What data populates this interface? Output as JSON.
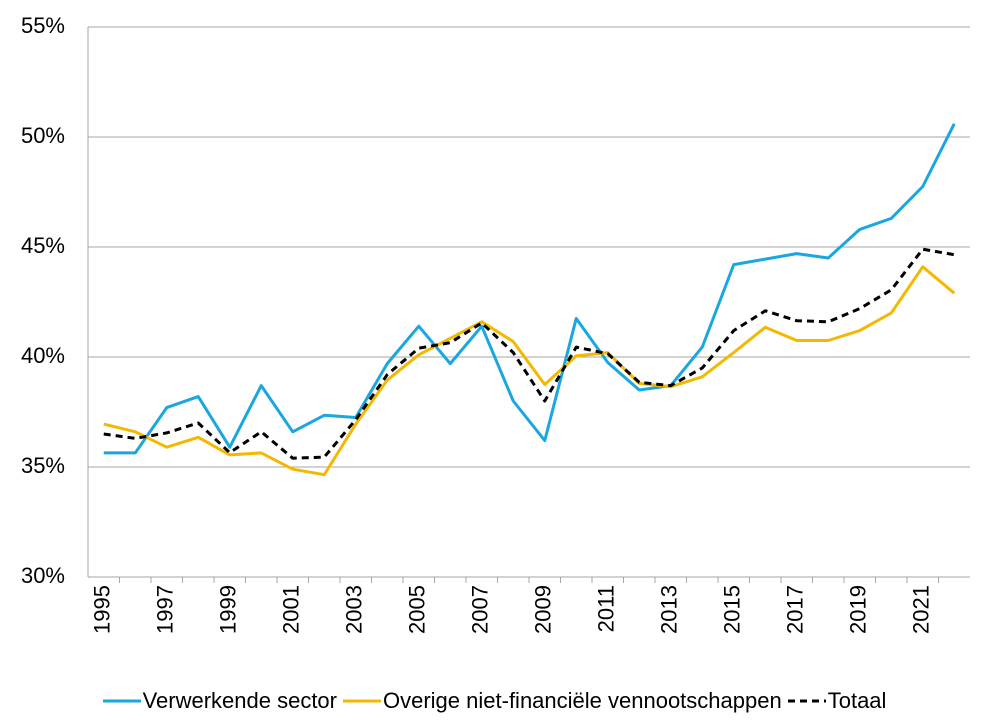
{
  "chart_data": {
    "type": "line",
    "x": [
      1995,
      1996,
      1997,
      1998,
      1999,
      2000,
      2001,
      2002,
      2003,
      2004,
      2005,
      2006,
      2007,
      2008,
      2009,
      2010,
      2011,
      2012,
      2013,
      2014,
      2015,
      2016,
      2017,
      2018,
      2019,
      2020,
      2021,
      2022
    ],
    "xlim": [
      1994.5,
      2022.5
    ],
    "xticks": [
      1995,
      1997,
      1999,
      2001,
      2003,
      2005,
      2007,
      2009,
      2011,
      2013,
      2015,
      2017,
      2019,
      2021
    ],
    "ylim": [
      30,
      55
    ],
    "yticks": [
      {
        "value": 30,
        "label": "30%"
      },
      {
        "value": 35,
        "label": "35%"
      },
      {
        "value": 40,
        "label": "40%"
      },
      {
        "value": 45,
        "label": "45%"
      },
      {
        "value": 50,
        "label": "50%"
      },
      {
        "value": 55,
        "label": "55%"
      }
    ],
    "grid": true,
    "series": [
      {
        "name": "Verwerkende sector",
        "color": "#1aa7e0",
        "dash": false,
        "values": [
          35.64,
          35.64,
          37.7,
          38.2,
          35.9,
          38.7,
          36.6,
          37.35,
          37.25,
          39.7,
          41.4,
          39.7,
          41.4,
          38.0,
          36.2,
          41.75,
          39.75,
          38.5,
          38.7,
          40.45,
          44.2,
          44.45,
          44.7,
          44.5,
          45.8,
          46.3,
          47.75,
          50.6
        ]
      },
      {
        "name": "Overige niet-financiële vennootschappen",
        "color": "#f5b800",
        "dash": false,
        "values": [
          36.95,
          36.6,
          35.9,
          36.35,
          35.55,
          35.64,
          34.9,
          34.65,
          36.95,
          38.95,
          40.1,
          40.85,
          41.6,
          40.7,
          38.75,
          40.05,
          40.2,
          38.8,
          38.65,
          39.1,
          40.2,
          41.35,
          40.75,
          40.75,
          41.2,
          42.0,
          44.1,
          42.9
        ]
      },
      {
        "name": "Totaal",
        "color": "#000000",
        "dash": true,
        "values": [
          36.5,
          36.3,
          36.55,
          37.0,
          35.65,
          36.6,
          35.4,
          35.45,
          37.15,
          39.2,
          40.4,
          40.65,
          41.55,
          40.2,
          38.0,
          40.45,
          40.15,
          38.85,
          38.7,
          39.5,
          41.2,
          42.1,
          41.65,
          41.6,
          42.2,
          43.05,
          44.9,
          44.65
        ]
      }
    ]
  }
}
